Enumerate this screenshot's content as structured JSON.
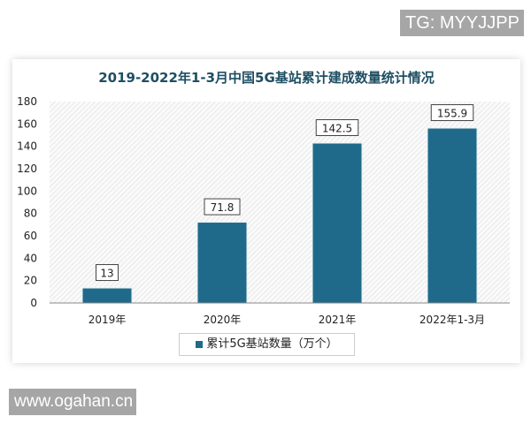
{
  "watermarks": {
    "top": "TG: MYYJJPP",
    "bottom": "www.ogahan.cn"
  },
  "chart_data": {
    "type": "bar",
    "title": "2019-2022年1-3月中国5G基站累计建成数量统计情况",
    "categories": [
      "2019年",
      "2020年",
      "2021年",
      "2022年1-3月"
    ],
    "series": [
      {
        "name": "累计5G基站数量（万个）",
        "values": [
          13,
          71.8,
          142.5,
          155.9
        ],
        "color": "#1f6a8a"
      }
    ],
    "data_labels": [
      "13",
      "71.8",
      "142.5",
      "155.9"
    ],
    "ylim": [
      0,
      180
    ],
    "yticks": [
      0,
      20,
      40,
      60,
      80,
      100,
      120,
      140,
      160,
      180
    ],
    "xlabel": "",
    "ylabel": "",
    "grid": false,
    "background": "hatched",
    "legend": "bottom"
  }
}
